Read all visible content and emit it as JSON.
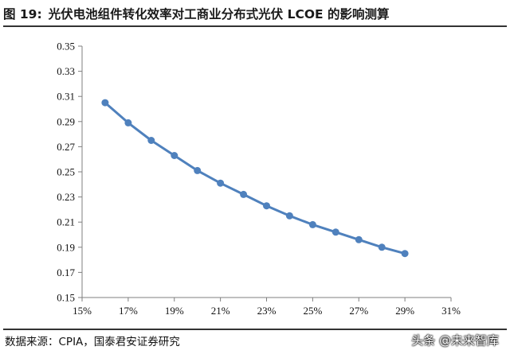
{
  "header": {
    "figure_label": "图 19:",
    "title": "光伏电池组件转化效率对工商业分布式光伏 LCOE 的影响测算"
  },
  "chart_data": {
    "type": "line",
    "title": "",
    "xlabel": "",
    "ylabel": "",
    "x": [
      "16%",
      "17%",
      "18%",
      "19%",
      "20%",
      "21%",
      "22%",
      "23%",
      "24%",
      "25%",
      "26%",
      "27%",
      "28%",
      "29%"
    ],
    "x_values": [
      16,
      17,
      18,
      19,
      20,
      21,
      22,
      23,
      24,
      25,
      26,
      27,
      28,
      29
    ],
    "series": [
      {
        "values": [
          0.305,
          0.289,
          0.275,
          0.263,
          0.251,
          0.241,
          0.232,
          0.223,
          0.215,
          0.208,
          0.202,
          0.196,
          0.19,
          0.185
        ]
      }
    ],
    "xlim": [
      15,
      31
    ],
    "ylim": [
      0.15,
      0.35
    ],
    "x_ticks": [
      "15%",
      "17%",
      "19%",
      "21%",
      "23%",
      "25%",
      "27%",
      "29%",
      "31%"
    ],
    "x_tick_values": [
      15,
      17,
      19,
      21,
      23,
      25,
      27,
      29,
      31
    ],
    "y_ticks": [
      "0.15",
      "0.17",
      "0.19",
      "0.21",
      "0.23",
      "0.25",
      "0.27",
      "0.29",
      "0.31",
      "0.33",
      "0.35"
    ],
    "y_tick_values": [
      0.15,
      0.17,
      0.19,
      0.21,
      0.23,
      0.25,
      0.27,
      0.29,
      0.31,
      0.33,
      0.35
    ],
    "grid": false,
    "legend": "none",
    "line_color": "#4F81BD"
  },
  "footer": {
    "source": "数据来源：CPIA，国泰君安证券研究",
    "watermark": "头条 @未来智库"
  }
}
